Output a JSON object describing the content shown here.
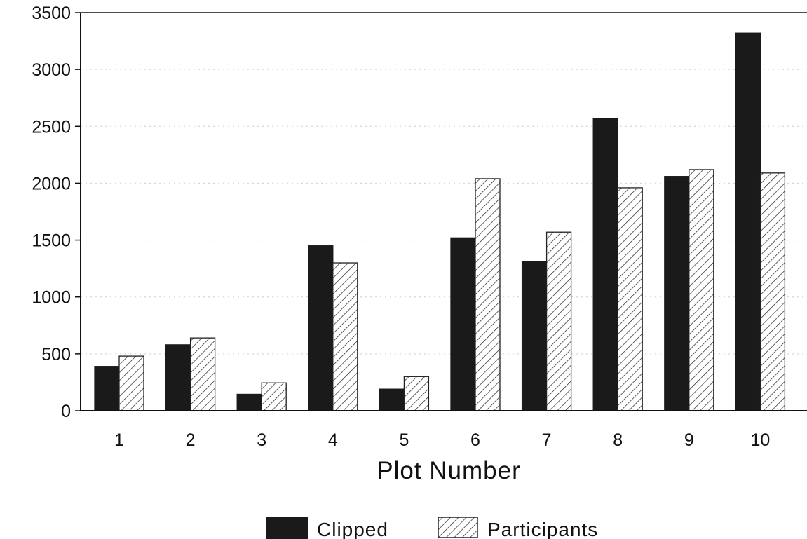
{
  "chart_data": {
    "type": "bar",
    "title": "",
    "xlabel": "Plot Number",
    "ylabel": "",
    "categories": [
      "1",
      "2",
      "3",
      "4",
      "5",
      "6",
      "7",
      "8",
      "9",
      "10"
    ],
    "series": [
      {
        "name": "Clipped",
        "values": [
          390,
          580,
          145,
          1450,
          190,
          1520,
          1310,
          2570,
          2060,
          3320
        ]
      },
      {
        "name": "Participants",
        "values": [
          480,
          640,
          245,
          1300,
          300,
          2040,
          1570,
          1960,
          2120,
          2090
        ]
      }
    ],
    "ylim": [
      0,
      3500
    ],
    "yticks": [
      0,
      500,
      1000,
      1500,
      2000,
      2500,
      3000,
      3500
    ],
    "grid": "dotted horizontal",
    "legend": "bottom",
    "colors": {
      "Clipped": "#1a1a1a",
      "Participants": "#ffffff",
      "hatch": "#222222",
      "axis": "#111111"
    }
  }
}
